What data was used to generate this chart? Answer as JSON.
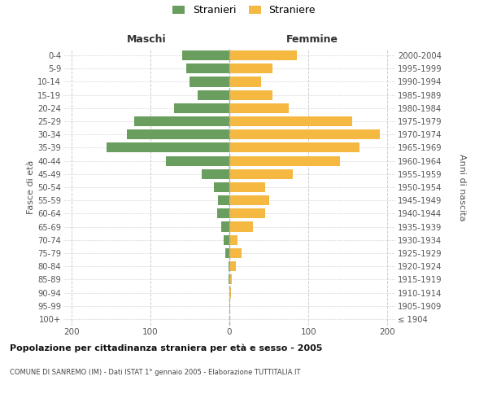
{
  "age_groups": [
    "100+",
    "95-99",
    "90-94",
    "85-89",
    "80-84",
    "75-79",
    "70-74",
    "65-69",
    "60-64",
    "55-59",
    "50-54",
    "45-49",
    "40-44",
    "35-39",
    "30-34",
    "25-29",
    "20-24",
    "15-19",
    "10-14",
    "5-9",
    "0-4"
  ],
  "birth_years": [
    "≤ 1904",
    "1905-1909",
    "1910-1914",
    "1915-1919",
    "1920-1924",
    "1925-1929",
    "1930-1934",
    "1935-1939",
    "1940-1944",
    "1945-1949",
    "1950-1954",
    "1955-1959",
    "1960-1964",
    "1965-1969",
    "1970-1974",
    "1975-1979",
    "1980-1984",
    "1985-1989",
    "1990-1994",
    "1995-1999",
    "2000-2004"
  ],
  "maschi": [
    0,
    0,
    0,
    1,
    1,
    5,
    7,
    10,
    15,
    14,
    20,
    35,
    80,
    155,
    130,
    120,
    70,
    40,
    50,
    55,
    60
  ],
  "femmine": [
    0,
    1,
    2,
    3,
    8,
    15,
    10,
    30,
    45,
    50,
    45,
    80,
    140,
    165,
    190,
    155,
    75,
    55,
    40,
    55,
    85
  ],
  "male_color": "#6a9e5e",
  "female_color": "#f5b942",
  "xlim": 210,
  "title": "Popolazione per cittadinanza straniera per età e sesso - 2005",
  "subtitle": "COMUNE DI SANREMO (IM) - Dati ISTAT 1° gennaio 2005 - Elaborazione TUTTITALIA.IT",
  "ylabel_left": "Fasce di età",
  "ylabel_right": "Anni di nascita",
  "header_maschi": "Maschi",
  "header_femmine": "Femmine",
  "legend_stranieri": "Stranieri",
  "legend_straniere": "Straniere",
  "bg_color": "#ffffff",
  "grid_color": "#cccccc"
}
